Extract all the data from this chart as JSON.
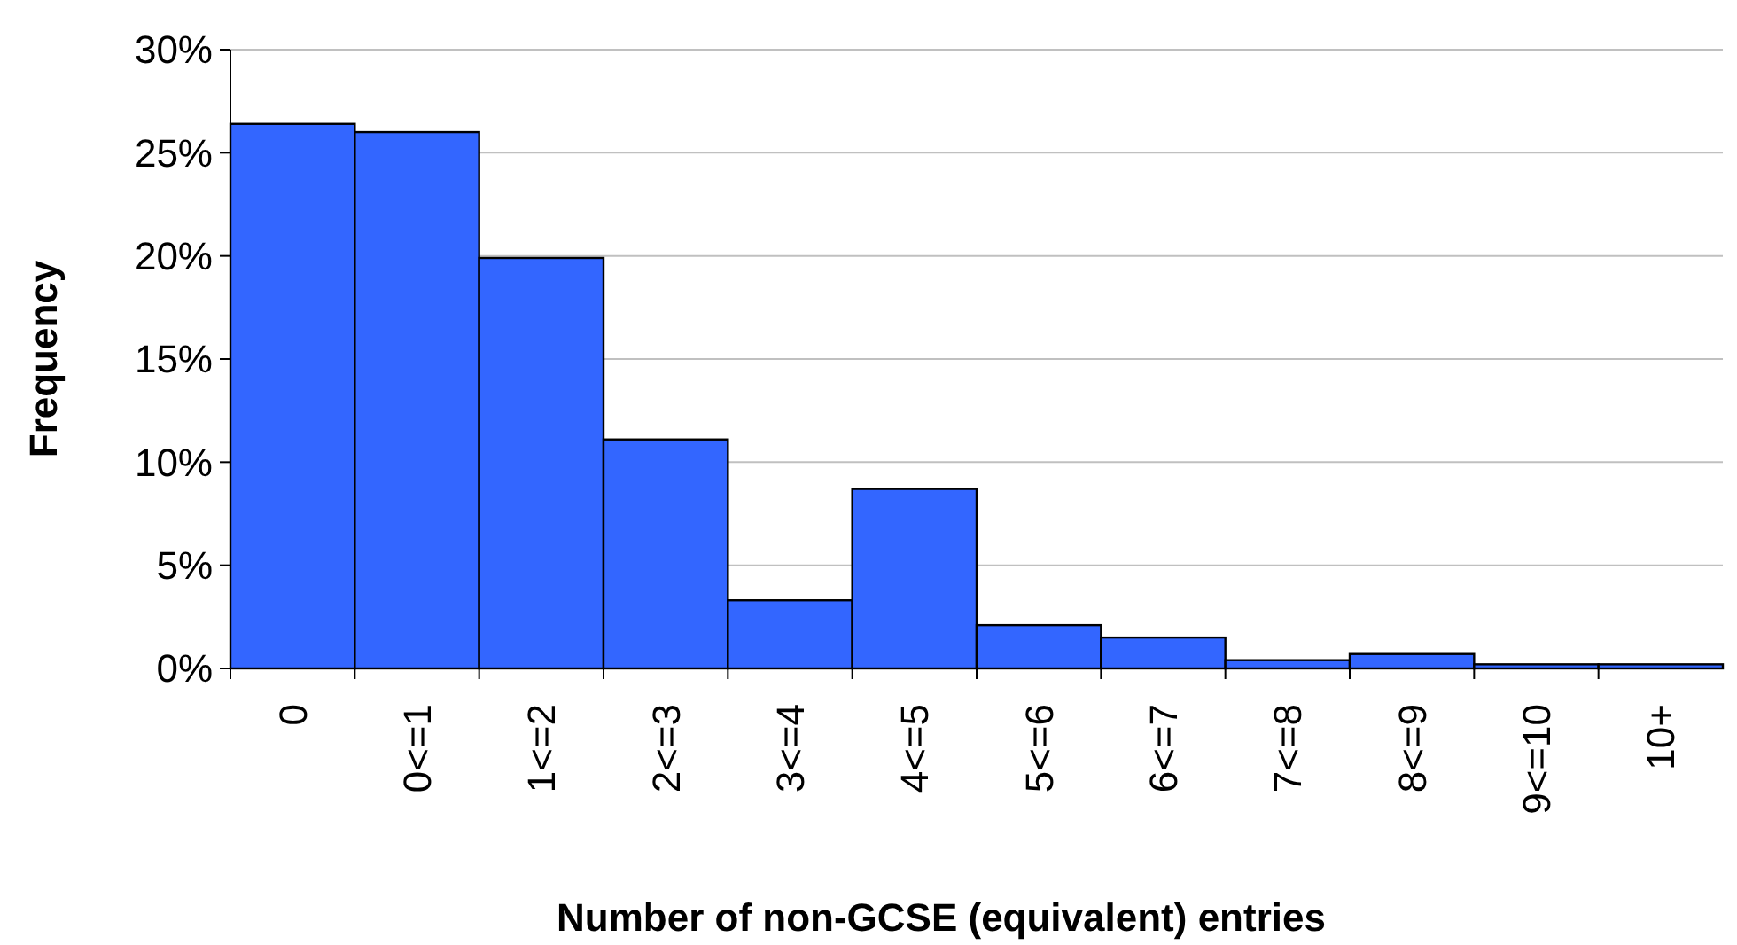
{
  "chart_data": {
    "type": "bar",
    "xlabel": "Number of non-GCSE (equivalent) entries",
    "ylabel": "Frequency",
    "categories": [
      "0",
      "0<=1",
      "1<=2",
      "2<=3",
      "3<=4",
      "4<=5",
      "5<=6",
      "6<=7",
      "7<=8",
      "8<=9",
      "9<=10",
      "10+"
    ],
    "values": [
      26.4,
      26.0,
      19.9,
      11.1,
      3.3,
      8.7,
      2.1,
      1.5,
      0.4,
      0.7,
      0.2,
      0.2
    ],
    "color": "#3366ff",
    "ylim": [
      0,
      30
    ],
    "yticks": [
      {
        "value": 0,
        "label": "0%"
      },
      {
        "value": 5,
        "label": "5%"
      },
      {
        "value": 10,
        "label": "10%"
      },
      {
        "value": 15,
        "label": "15%"
      },
      {
        "value": 20,
        "label": "20%"
      },
      {
        "value": 25,
        "label": "25%"
      },
      {
        "value": 30,
        "label": "30%"
      }
    ],
    "grid": "y"
  }
}
